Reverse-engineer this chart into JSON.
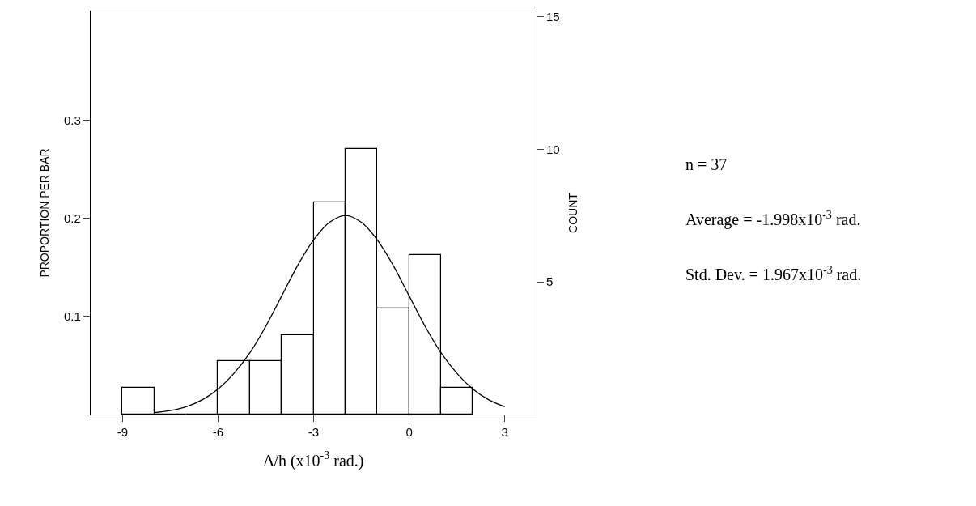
{
  "chart_data": {
    "type": "histogram",
    "xlabel": "Δ/h (x10$^{-3}$ rad.)",
    "ylabel": "PROPORTION PER BAR",
    "y2label": "COUNT",
    "bins": [
      -9,
      -8,
      -7,
      -6,
      -5,
      -4,
      -3,
      -2,
      -1,
      0,
      1,
      2
    ],
    "series": [
      {
        "axis": "y2",
        "color": "#000000",
        "values": [
          1,
          0,
          0,
          2,
          2,
          3,
          8,
          10,
          4,
          6,
          1
        ]
      },
      {
        "type": "line",
        "axis": "y",
        "color": "#000000",
        "x": [
          -8,
          -7.5,
          -7,
          -6.5,
          -6,
          -5.5,
          -5,
          -4.5,
          -4,
          -3.5,
          -3,
          -2.5,
          -2,
          -1.5,
          -1,
          -0.5,
          0,
          0.5,
          1,
          1.5,
          2,
          2.5,
          3
        ],
        "values": [
          0.002,
          0.004,
          0.008,
          0.015,
          0.026,
          0.042,
          0.063,
          0.09,
          0.121,
          0.152,
          0.178,
          0.196,
          0.203,
          0.196,
          0.178,
          0.152,
          0.121,
          0.09,
          0.063,
          0.042,
          0.026,
          0.015,
          0.008
        ]
      }
    ],
    "xlim": [
      -10,
      4
    ],
    "xticks": [
      -9,
      -6,
      -3,
      0,
      3
    ],
    "ylim": [
      0,
      0.411
    ],
    "yticks": [
      {
        "value": 0.1,
        "label": "0.1"
      },
      {
        "value": 0.2,
        "label": "0.2"
      },
      {
        "value": 0.3,
        "label": "0.3"
      }
    ],
    "y2lim": [
      0,
      15.2
    ],
    "y2ticks": [
      5,
      10,
      15
    ],
    "annotations": [
      "n = 37",
      "Average = -1.998x10$^{-3}$ rad.",
      "Std. Dev. = 1.967x10$^{-3}$ rad."
    ],
    "marker": "none",
    "line_style": "solid"
  }
}
